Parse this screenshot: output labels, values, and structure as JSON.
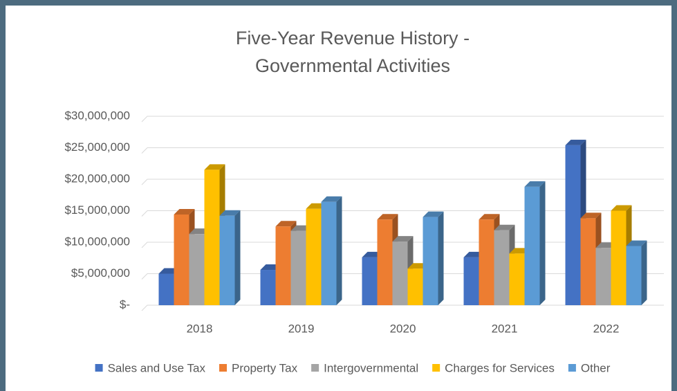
{
  "chart_data": {
    "type": "bar3d",
    "title": [
      "Five-Year Revenue History -",
      "Governmental Activities"
    ],
    "categories": [
      "2018",
      "2019",
      "2020",
      "2021",
      "2022"
    ],
    "series": [
      {
        "name": "Sales and Use Tax",
        "color": "#4472c4",
        "values": [
          5000000,
          5600000,
          7600000,
          7600000,
          25400000
        ]
      },
      {
        "name": "Property Tax",
        "color": "#ed7d31",
        "values": [
          14400000,
          12500000,
          13600000,
          13600000,
          13800000
        ]
      },
      {
        "name": "Intergovernmental",
        "color": "#a5a5a5",
        "values": [
          11300000,
          11800000,
          10100000,
          11900000,
          9100000
        ]
      },
      {
        "name": "Charges for Services",
        "color": "#ffc000",
        "values": [
          21500000,
          15300000,
          5800000,
          8200000,
          15000000
        ]
      },
      {
        "name": "Other",
        "color": "#5b9bd5",
        "values": [
          14200000,
          16400000,
          14000000,
          18800000,
          9400000
        ]
      }
    ],
    "ylim": [
      0,
      30000000
    ],
    "yticks": [
      {
        "value": 0,
        "label": "$-"
      },
      {
        "value": 5000000,
        "label": "$5,000,000"
      },
      {
        "value": 10000000,
        "label": "$10,000,000"
      },
      {
        "value": 15000000,
        "label": "$15,000,000"
      },
      {
        "value": 20000000,
        "label": "$20,000,000"
      },
      {
        "value": 25000000,
        "label": "$25,000,000"
      },
      {
        "value": 30000000,
        "label": "$30,000,000"
      }
    ],
    "grid": true,
    "legend": "bottom"
  }
}
